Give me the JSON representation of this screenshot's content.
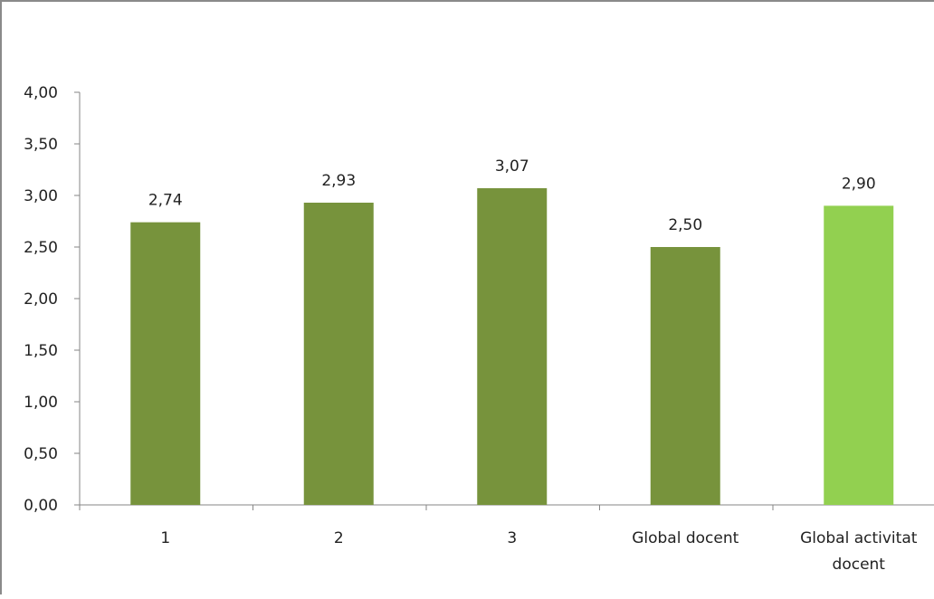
{
  "chart_data": {
    "type": "bar",
    "categories": [
      [
        "1"
      ],
      [
        "2"
      ],
      [
        "3"
      ],
      [
        "Global docent"
      ],
      [
        "Global activitat",
        "docent"
      ]
    ],
    "values": [
      2.74,
      2.93,
      3.07,
      2.5,
      2.9
    ],
    "data_labels": [
      "2,74",
      "2,93",
      "3,07",
      "2,50",
      "2,90"
    ],
    "bar_colors": [
      "#77933c",
      "#77933c",
      "#77933c",
      "#77933c",
      "#92d050"
    ],
    "ylim": [
      0,
      4
    ],
    "y_ticks": [
      0,
      0.5,
      1,
      1.5,
      2,
      2.5,
      3,
      3.5,
      4
    ],
    "y_tick_labels": [
      "0,00",
      "0,50",
      "1,00",
      "1,50",
      "2,00",
      "2,50",
      "3,00",
      "3,50",
      "4,00"
    ],
    "grid": false,
    "legend": "none",
    "title": "",
    "xlabel": "",
    "ylabel": ""
  }
}
